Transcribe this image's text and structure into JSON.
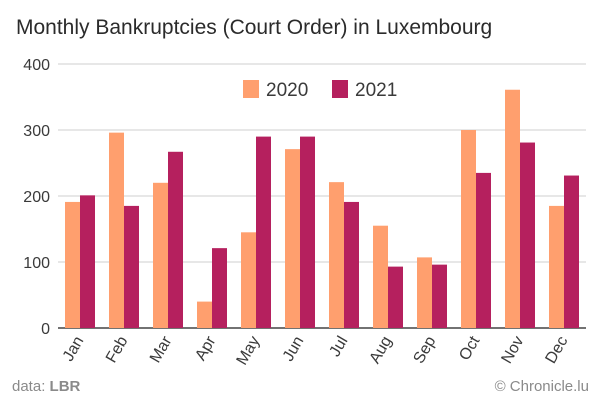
{
  "chart_data": {
    "type": "bar",
    "title": "Monthly Bankruptcies (Court Order) in Luxembourg",
    "categories": [
      "Jan",
      "Feb",
      "Mar",
      "Apr",
      "May",
      "Jun",
      "Jul",
      "Aug",
      "Sep",
      "Oct",
      "Nov",
      "Dec"
    ],
    "series": [
      {
        "name": "2020",
        "color": "#ff9f6e",
        "values": [
          191,
          296,
          220,
          40,
          145,
          271,
          221,
          155,
          107,
          300,
          361,
          185
        ]
      },
      {
        "name": "2021",
        "color": "#b5205e",
        "values": [
          201,
          185,
          267,
          121,
          290,
          290,
          191,
          93,
          96,
          235,
          281,
          231
        ]
      }
    ],
    "ylim": [
      0,
      400
    ],
    "yticks": [
      0,
      100,
      200,
      300,
      400
    ],
    "grid": true,
    "legend": "top-center"
  },
  "footer": {
    "source_prefix": "data: ",
    "source_name": "LBR",
    "credit": "© Chronicle.lu"
  }
}
